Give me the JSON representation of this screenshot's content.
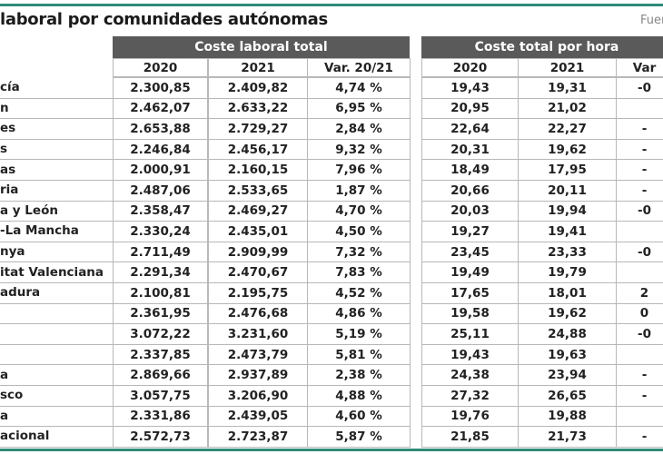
{
  "header": {
    "title": "laboral por comunidades autónomas",
    "source": "Fuen"
  },
  "table": {
    "groups": [
      "Coste laboral total",
      "Coste total por hora"
    ],
    "columns": [
      "2020",
      "2021",
      "Var. 20/21",
      "2020",
      "2021",
      "Var"
    ],
    "rows": [
      [
        "cía",
        "2.300,85",
        "2.409,82",
        "4,74 %",
        "19,43",
        "19,31",
        "-0"
      ],
      [
        "n",
        "2.462,07",
        "2.633,22",
        "6,95 %",
        "20,95",
        "21,02",
        null
      ],
      [
        "es",
        "2.653,88",
        "2.729,27",
        "2,84 %",
        "22,64",
        "22,27",
        "-"
      ],
      [
        "s",
        "2.246,84",
        "2.456,17",
        "9,32 %",
        "20,31",
        "19,62",
        "-"
      ],
      [
        "as",
        "2.000,91",
        "2.160,15",
        "7,96 %",
        "18,49",
        "17,95",
        "-"
      ],
      [
        "ria",
        "2.487,06",
        "2.533,65",
        "1,87 %",
        "20,66",
        "20,11",
        "-"
      ],
      [
        "a y León",
        "2.358,47",
        "2.469,27",
        "4,70 %",
        "20,03",
        "19,94",
        "-0"
      ],
      [
        "-La Mancha",
        "2.330,24",
        "2.435,01",
        "4,50 %",
        "19,27",
        "19,41",
        null
      ],
      [
        "nya",
        "2.711,49",
        "2.909,99",
        "7,32 %",
        "23,45",
        "23,33",
        "-0"
      ],
      [
        "itat Valenciana",
        "2.291,34",
        "2.470,67",
        "7,83 %",
        "19,49",
        "19,79",
        null
      ],
      [
        "adura",
        "2.100,81",
        "2.195,75",
        "4,52 %",
        "17,65",
        "18,01",
        "2"
      ],
      [
        null,
        "2.361,95",
        "2.476,68",
        "4,86 %",
        "19,58",
        "19,62",
        "0"
      ],
      [
        null,
        "3.072,22",
        "3.231,60",
        "5,19 %",
        "25,11",
        "24,88",
        "-0"
      ],
      [
        null,
        "2.337,85",
        "2.473,79",
        "5,81 %",
        "19,43",
        "19,63",
        null
      ],
      [
        "a",
        "2.869,66",
        "2.937,89",
        "2,38 %",
        "24,38",
        "23,94",
        "-"
      ],
      [
        "sco",
        "3.057,75",
        "3.206,90",
        "4,88 %",
        "27,32",
        "26,65",
        "-"
      ],
      [
        "a",
        "2.331,86",
        "2.439,05",
        "4,60 %",
        "19,76",
        "19,88",
        null
      ],
      [
        "acional",
        "2.572,73",
        "2.723,87",
        "5,87 %",
        "21,85",
        "21,73",
        "-"
      ]
    ]
  }
}
